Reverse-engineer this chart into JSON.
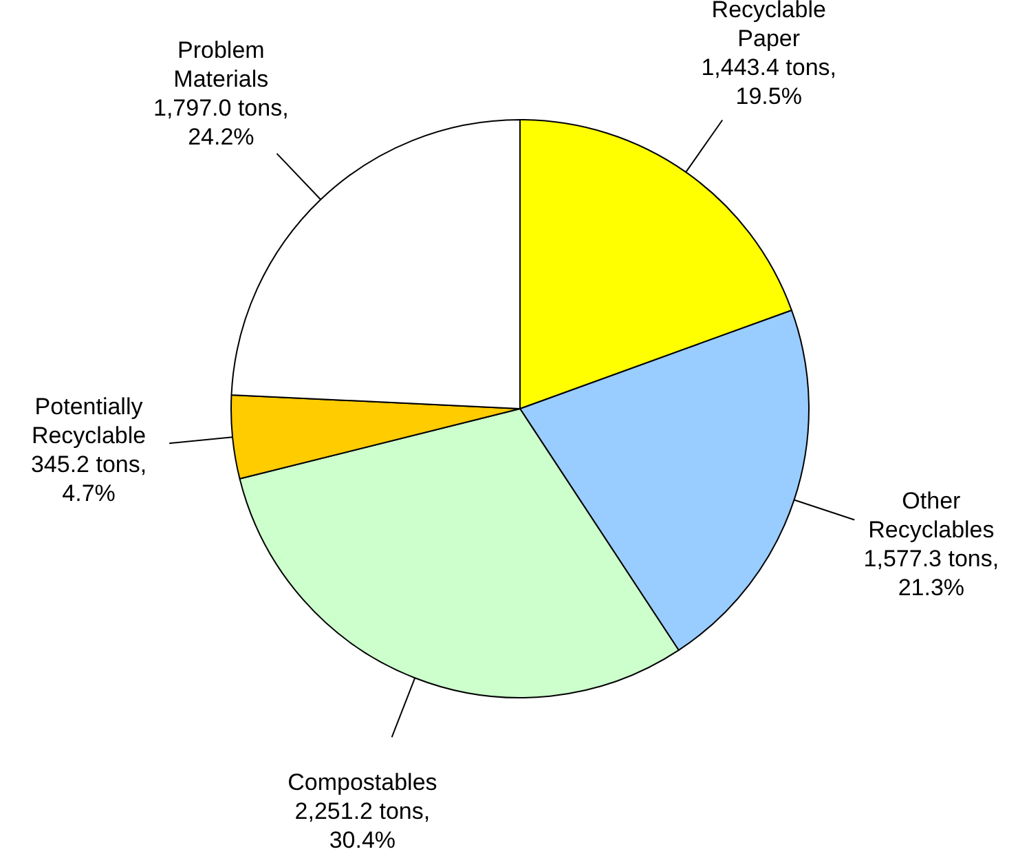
{
  "chart_data": {
    "type": "pie",
    "categories": [
      "Recyclable\nPaper",
      "Other\nRecyclables",
      "Compostables",
      "Potentially\nRecyclable",
      "Problem\nMaterials"
    ],
    "values": [
      1443.4,
      1577.3,
      2251.2,
      345.2,
      1797.0
    ],
    "colors": [
      "#ffff00",
      "#99ccff",
      "#ccffcc",
      "#ffcc00",
      "#ffffff"
    ],
    "value_labels": [
      "1,443.4 tons,\n19.5%",
      "1,577.3 tons,\n21.3%",
      "2,251.2 tons,\n30.4%",
      "345.2 tons,\n4.7%",
      "1,797.0 tons,\n24.2%"
    ]
  }
}
